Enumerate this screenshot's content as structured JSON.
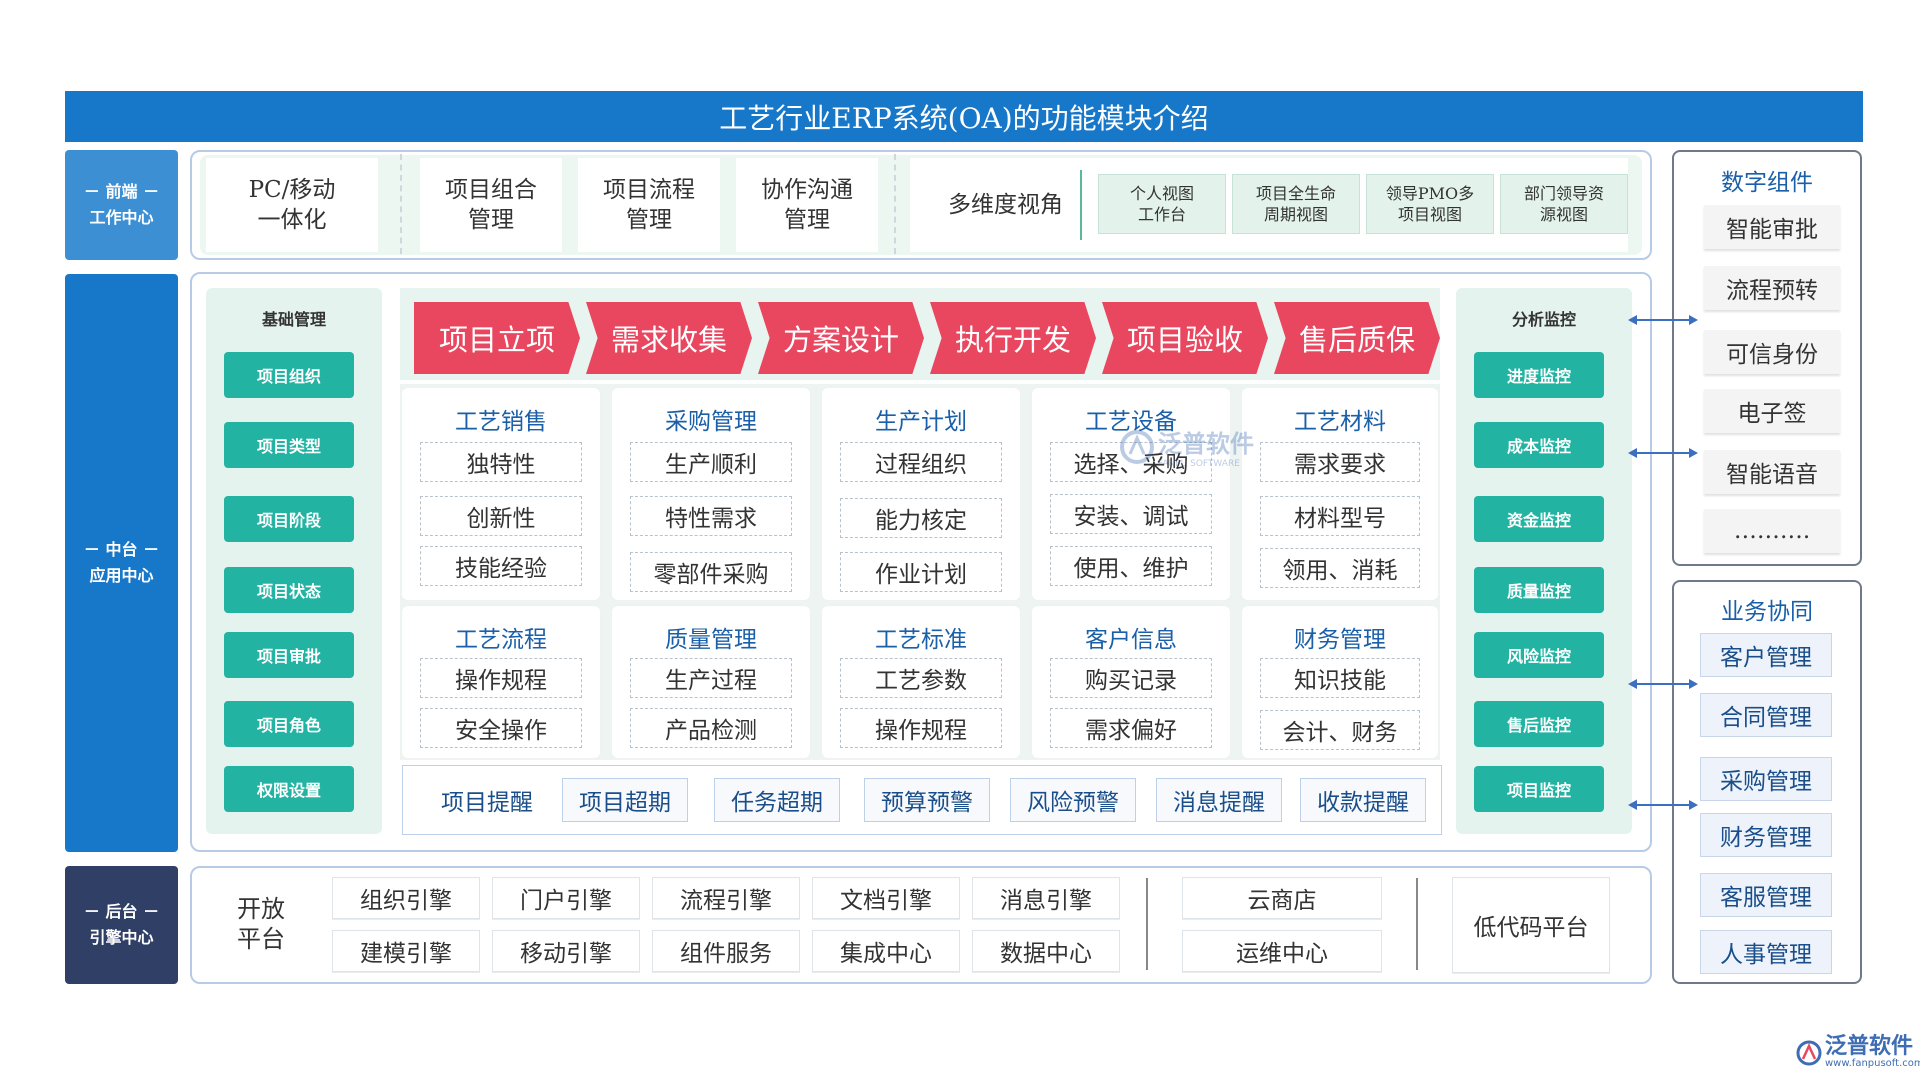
{
  "title": "工艺行业ERP系统(OA)的功能模块介绍",
  "row_labels": {
    "front": [
      "－ 前端 －",
      "工作中心"
    ],
    "middle": [
      "－ 中台 －",
      "应用中心"
    ],
    "back": [
      "－ 后台 －",
      "引擎中心"
    ]
  },
  "front": {
    "cards": [
      [
        "PC/移动",
        "一体化"
      ],
      [
        "项目组合",
        "管理"
      ],
      [
        "项目流程",
        "管理"
      ],
      [
        "协作沟通",
        "管理"
      ]
    ],
    "multiview_label": "多维度视角",
    "multiview_items": [
      [
        "个人视图",
        "工作台"
      ],
      [
        "项目全生命",
        "周期视图"
      ],
      [
        "领导PMO多",
        "项目视图"
      ],
      [
        "部门领导资",
        "源视图"
      ]
    ]
  },
  "basic": {
    "title": "基础管理",
    "items": [
      "项目组织",
      "项目类型",
      "项目阶段",
      "项目状态",
      "项目审批",
      "项目角色",
      "权限设置"
    ]
  },
  "flow": [
    "项目立项",
    "需求收集",
    "方案设计",
    "执行开发",
    "项目验收",
    "售后质保"
  ],
  "modules_top": [
    {
      "title": "工艺销售",
      "items": [
        "独特性",
        "创新性",
        "技能经验"
      ]
    },
    {
      "title": "采购管理",
      "items": [
        "生产顺利",
        "特性需求",
        "零部件采购"
      ]
    },
    {
      "title": "生产计划",
      "items": [
        "过程组织",
        "能力核定",
        "作业计划"
      ]
    },
    {
      "title": "工艺设备",
      "items": [
        "选择、采购",
        "安装、调试",
        "使用、维护"
      ]
    },
    {
      "title": "工艺材料",
      "items": [
        "需求要求",
        "材料型号",
        "领用、消耗"
      ]
    }
  ],
  "modules_bottom": [
    {
      "title": "工艺流程",
      "items": [
        "操作规程",
        "安全操作"
      ]
    },
    {
      "title": "质量管理",
      "items": [
        "生产过程",
        "产品检测"
      ]
    },
    {
      "title": "工艺标准",
      "items": [
        "工艺参数",
        "操作规程"
      ]
    },
    {
      "title": "客户信息",
      "items": [
        "购买记录",
        "需求偏好"
      ]
    },
    {
      "title": "财务管理",
      "items": [
        "知识技能",
        "会计、财务"
      ]
    }
  ],
  "reminders": [
    "项目提醒",
    "项目超期",
    "任务超期",
    "预算预警",
    "风险预警",
    "消息提醒",
    "收款提醒"
  ],
  "analysis": {
    "title": "分析监控",
    "items": [
      "进度监控",
      "成本监控",
      "资金监控",
      "质量监控",
      "风险监控",
      "售后监控",
      "项目监控"
    ]
  },
  "back": {
    "open_platform": [
      "开放",
      "平台"
    ],
    "engines_row1": [
      "组织引擎",
      "门户引擎",
      "流程引擎",
      "文档引擎",
      "消息引擎"
    ],
    "engines_row2": [
      "建模引擎",
      "移动引擎",
      "组件服务",
      "集成中心",
      "数据中心"
    ],
    "cloud": [
      "云商店",
      "运维中心"
    ],
    "lowcode": "低代码平台"
  },
  "digital": {
    "title": "数字组件",
    "items": [
      "智能审批",
      "流程预转",
      "可信身份",
      "电子签",
      "智能语音",
      "………."
    ]
  },
  "business": {
    "title": "业务协同",
    "items": [
      "客户管理",
      "合同管理",
      "采购管理",
      "财务管理",
      "客服管理",
      "人事管理"
    ]
  },
  "watermark": {
    "name": "泛普软件",
    "sub": "FANPU SOFTWARE"
  },
  "footer_logo": {
    "name": "泛普软件",
    "url": "www.fanpusoft.com"
  },
  "colors": {
    "primary": "#1777c8",
    "flow": "#e8475f",
    "green": "#22b3a2",
    "dark": "#2f3f66"
  }
}
